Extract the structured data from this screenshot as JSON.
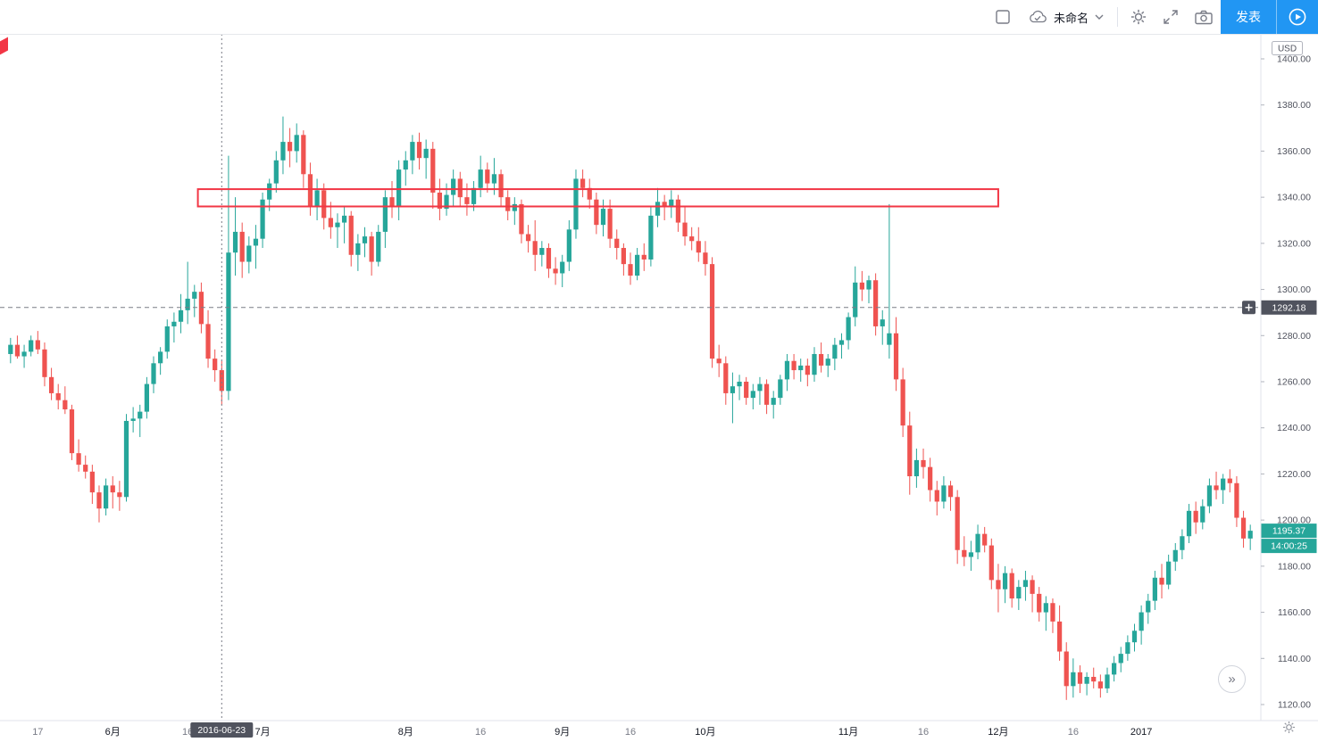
{
  "toolbar": {
    "layout_name": "未命名",
    "publish_label": "发表"
  },
  "footer": {
    "more_label": "»"
  },
  "chart_data": {
    "type": "candlestick",
    "currency": "USD",
    "grid": false,
    "title": "",
    "y_ticks": [
      1400,
      1380,
      1360,
      1340,
      1320,
      1300,
      1280,
      1260,
      1240,
      1220,
      1200,
      1180,
      1160,
      1140,
      1120
    ],
    "x_labels": [
      {
        "text": "17",
        "index": 4,
        "major": false
      },
      {
        "text": "6月",
        "index": 15,
        "major": true
      },
      {
        "text": "16",
        "index": 26,
        "major": false
      },
      {
        "text": "7月",
        "index": 37,
        "major": true
      },
      {
        "text": "8月",
        "index": 58,
        "major": true
      },
      {
        "text": "16",
        "index": 69,
        "major": false
      },
      {
        "text": "9月",
        "index": 81,
        "major": true
      },
      {
        "text": "16",
        "index": 91,
        "major": false
      },
      {
        "text": "10月",
        "index": 102,
        "major": true
      },
      {
        "text": "11月",
        "index": 123,
        "major": true
      },
      {
        "text": "16",
        "index": 134,
        "major": false
      },
      {
        "text": "12月",
        "index": 145,
        "major": true
      },
      {
        "text": "16",
        "index": 156,
        "major": false
      },
      {
        "text": "2017",
        "index": 166,
        "major": true
      }
    ],
    "colors": {
      "up": "#26a69a",
      "down": "#ef5350",
      "crosshair": "#787b86",
      "badge_dark": "#50535e",
      "accent_blue": "#2196f3",
      "drawing_red": "#f23645"
    },
    "candles_ohlc": [
      [
        1272,
        1279,
        1268,
        1276
      ],
      [
        1276,
        1280,
        1270,
        1271
      ],
      [
        1271,
        1276,
        1266,
        1273
      ],
      [
        1273,
        1280,
        1271,
        1278
      ],
      [
        1278,
        1282,
        1272,
        1274
      ],
      [
        1274,
        1277,
        1258,
        1262
      ],
      [
        1262,
        1266,
        1252,
        1255
      ],
      [
        1255,
        1259,
        1248,
        1252
      ],
      [
        1252,
        1258,
        1246,
        1248
      ],
      [
        1248,
        1250,
        1226,
        1229
      ],
      [
        1229,
        1235,
        1221,
        1224
      ],
      [
        1224,
        1228,
        1218,
        1221
      ],
      [
        1221,
        1224,
        1207,
        1212
      ],
      [
        1212,
        1215,
        1199,
        1205
      ],
      [
        1205,
        1218,
        1202,
        1215
      ],
      [
        1215,
        1219,
        1205,
        1212
      ],
      [
        1212,
        1217,
        1204,
        1210
      ],
      [
        1210,
        1246,
        1208,
        1243
      ],
      [
        1243,
        1249,
        1238,
        1244
      ],
      [
        1244,
        1250,
        1236,
        1247
      ],
      [
        1247,
        1262,
        1244,
        1259
      ],
      [
        1259,
        1271,
        1255,
        1268
      ],
      [
        1268,
        1275,
        1263,
        1273
      ],
      [
        1273,
        1287,
        1270,
        1284
      ],
      [
        1284,
        1290,
        1277,
        1286
      ],
      [
        1286,
        1298,
        1281,
        1291
      ],
      [
        1291,
        1312,
        1285,
        1296
      ],
      [
        1296,
        1302,
        1288,
        1299
      ],
      [
        1299,
        1303,
        1281,
        1285
      ],
      [
        1285,
        1291,
        1266,
        1270
      ],
      [
        1270,
        1274,
        1260,
        1265
      ],
      [
        1265,
        1269,
        1250,
        1256
      ],
      [
        1256,
        1358,
        1252,
        1316
      ],
      [
        1316,
        1340,
        1306,
        1325
      ],
      [
        1325,
        1329,
        1305,
        1312
      ],
      [
        1312,
        1323,
        1307,
        1319
      ],
      [
        1319,
        1328,
        1309,
        1322
      ],
      [
        1322,
        1342,
        1318,
        1339
      ],
      [
        1339,
        1348,
        1334,
        1346
      ],
      [
        1346,
        1360,
        1342,
        1356
      ],
      [
        1356,
        1375,
        1350,
        1364
      ],
      [
        1364,
        1370,
        1353,
        1360
      ],
      [
        1360,
        1372,
        1355,
        1367
      ],
      [
        1367,
        1369,
        1344,
        1350
      ],
      [
        1350,
        1355,
        1332,
        1336
      ],
      [
        1336,
        1348,
        1330,
        1343
      ],
      [
        1343,
        1346,
        1326,
        1331
      ],
      [
        1331,
        1338,
        1322,
        1327
      ],
      [
        1327,
        1333,
        1318,
        1329
      ],
      [
        1329,
        1336,
        1320,
        1332
      ],
      [
        1332,
        1334,
        1310,
        1315
      ],
      [
        1315,
        1324,
        1308,
        1320
      ],
      [
        1320,
        1327,
        1314,
        1323
      ],
      [
        1323,
        1325,
        1306,
        1312
      ],
      [
        1312,
        1328,
        1310,
        1325
      ],
      [
        1325,
        1343,
        1318,
        1340
      ],
      [
        1340,
        1347,
        1331,
        1336
      ],
      [
        1336,
        1356,
        1330,
        1352
      ],
      [
        1352,
        1360,
        1345,
        1356
      ],
      [
        1356,
        1367,
        1350,
        1364
      ],
      [
        1364,
        1368,
        1352,
        1357
      ],
      [
        1357,
        1365,
        1348,
        1361
      ],
      [
        1361,
        1364,
        1335,
        1342
      ],
      [
        1342,
        1348,
        1330,
        1335
      ],
      [
        1335,
        1346,
        1332,
        1341
      ],
      [
        1341,
        1352,
        1336,
        1348
      ],
      [
        1348,
        1351,
        1336,
        1340
      ],
      [
        1340,
        1346,
        1332,
        1337
      ],
      [
        1337,
        1347,
        1334,
        1344
      ],
      [
        1344,
        1358,
        1340,
        1352
      ],
      [
        1352,
        1355,
        1342,
        1346
      ],
      [
        1346,
        1357,
        1341,
        1350
      ],
      [
        1350,
        1352,
        1336,
        1340
      ],
      [
        1340,
        1343,
        1330,
        1334
      ],
      [
        1334,
        1340,
        1328,
        1337
      ],
      [
        1337,
        1339,
        1320,
        1324
      ],
      [
        1324,
        1328,
        1316,
        1321
      ],
      [
        1321,
        1330,
        1308,
        1315
      ],
      [
        1315,
        1321,
        1310,
        1318
      ],
      [
        1318,
        1320,
        1305,
        1309
      ],
      [
        1309,
        1314,
        1302,
        1307
      ],
      [
        1307,
        1315,
        1301,
        1312
      ],
      [
        1312,
        1330,
        1308,
        1326
      ],
      [
        1326,
        1352,
        1322,
        1348
      ],
      [
        1348,
        1352,
        1340,
        1344
      ],
      [
        1344,
        1348,
        1335,
        1339
      ],
      [
        1339,
        1342,
        1324,
        1328
      ],
      [
        1328,
        1339,
        1323,
        1335
      ],
      [
        1335,
        1339,
        1318,
        1322
      ],
      [
        1322,
        1326,
        1313,
        1318
      ],
      [
        1318,
        1320,
        1306,
        1311
      ],
      [
        1311,
        1316,
        1302,
        1306
      ],
      [
        1306,
        1318,
        1304,
        1315
      ],
      [
        1315,
        1320,
        1308,
        1313
      ],
      [
        1313,
        1336,
        1310,
        1332
      ],
      [
        1332,
        1344,
        1327,
        1338
      ],
      [
        1338,
        1341,
        1330,
        1336
      ],
      [
        1336,
        1343,
        1331,
        1339
      ],
      [
        1339,
        1341,
        1325,
        1329
      ],
      [
        1329,
        1336,
        1319,
        1323
      ],
      [
        1323,
        1327,
        1317,
        1321
      ],
      [
        1321,
        1327,
        1312,
        1316
      ],
      [
        1316,
        1321,
        1306,
        1311
      ],
      [
        1311,
        1314,
        1266,
        1270
      ],
      [
        1270,
        1276,
        1262,
        1268
      ],
      [
        1268,
        1271,
        1250,
        1255
      ],
      [
        1255,
        1264,
        1242,
        1258
      ],
      [
        1258,
        1263,
        1252,
        1260
      ],
      [
        1260,
        1262,
        1250,
        1253
      ],
      [
        1253,
        1259,
        1248,
        1256
      ],
      [
        1256,
        1262,
        1250,
        1259
      ],
      [
        1259,
        1261,
        1246,
        1250
      ],
      [
        1250,
        1256,
        1244,
        1253
      ],
      [
        1253,
        1263,
        1250,
        1261
      ],
      [
        1261,
        1272,
        1256,
        1269
      ],
      [
        1269,
        1272,
        1261,
        1265
      ],
      [
        1265,
        1270,
        1260,
        1267
      ],
      [
        1267,
        1270,
        1258,
        1263
      ],
      [
        1263,
        1275,
        1260,
        1272
      ],
      [
        1272,
        1277,
        1264,
        1267
      ],
      [
        1267,
        1272,
        1262,
        1270
      ],
      [
        1270,
        1279,
        1265,
        1276
      ],
      [
        1276,
        1281,
        1270,
        1278
      ],
      [
        1278,
        1290,
        1274,
        1288
      ],
      [
        1288,
        1310,
        1284,
        1303
      ],
      [
        1303,
        1308,
        1295,
        1300
      ],
      [
        1300,
        1306,
        1294,
        1304
      ],
      [
        1304,
        1307,
        1280,
        1284
      ],
      [
        1284,
        1291,
        1276,
        1287
      ],
      [
        1276,
        1337,
        1270,
        1281
      ],
      [
        1281,
        1288,
        1256,
        1261
      ],
      [
        1261,
        1266,
        1236,
        1241
      ],
      [
        1241,
        1247,
        1211,
        1219
      ],
      [
        1219,
        1231,
        1214,
        1226
      ],
      [
        1226,
        1231,
        1218,
        1223
      ],
      [
        1223,
        1227,
        1208,
        1213
      ],
      [
        1213,
        1217,
        1202,
        1208
      ],
      [
        1208,
        1219,
        1205,
        1215
      ],
      [
        1215,
        1217,
        1204,
        1210
      ],
      [
        1210,
        1213,
        1181,
        1187
      ],
      [
        1187,
        1193,
        1180,
        1184
      ],
      [
        1184,
        1191,
        1178,
        1186
      ],
      [
        1186,
        1198,
        1183,
        1194
      ],
      [
        1194,
        1197,
        1186,
        1189
      ],
      [
        1189,
        1192,
        1170,
        1174
      ],
      [
        1174,
        1181,
        1160,
        1170
      ],
      [
        1170,
        1180,
        1164,
        1177
      ],
      [
        1177,
        1179,
        1162,
        1166
      ],
      [
        1166,
        1174,
        1161,
        1171
      ],
      [
        1171,
        1178,
        1165,
        1174
      ],
      [
        1174,
        1176,
        1160,
        1168
      ],
      [
        1168,
        1171,
        1156,
        1160
      ],
      [
        1160,
        1167,
        1152,
        1164
      ],
      [
        1164,
        1166,
        1151,
        1156
      ],
      [
        1156,
        1163,
        1139,
        1143
      ],
      [
        1143,
        1147,
        1122,
        1128
      ],
      [
        1128,
        1140,
        1123,
        1134
      ],
      [
        1134,
        1137,
        1125,
        1129
      ],
      [
        1129,
        1134,
        1124,
        1132
      ],
      [
        1132,
        1136,
        1127,
        1130
      ],
      [
        1130,
        1133,
        1123,
        1127
      ],
      [
        1127,
        1136,
        1125,
        1133
      ],
      [
        1133,
        1141,
        1130,
        1138
      ],
      [
        1138,
        1145,
        1134,
        1142
      ],
      [
        1142,
        1150,
        1139,
        1147
      ],
      [
        1147,
        1155,
        1143,
        1152
      ],
      [
        1152,
        1163,
        1146,
        1160
      ],
      [
        1160,
        1168,
        1155,
        1165
      ],
      [
        1165,
        1178,
        1161,
        1175
      ],
      [
        1175,
        1181,
        1166,
        1172
      ],
      [
        1172,
        1185,
        1170,
        1182
      ],
      [
        1182,
        1190,
        1178,
        1187
      ],
      [
        1187,
        1196,
        1183,
        1193
      ],
      [
        1193,
        1207,
        1190,
        1204
      ],
      [
        1204,
        1208,
        1194,
        1199
      ],
      [
        1199,
        1209,
        1196,
        1206
      ],
      [
        1206,
        1218,
        1203,
        1215
      ],
      [
        1215,
        1221,
        1209,
        1213
      ],
      [
        1213,
        1220,
        1207,
        1218
      ],
      [
        1218,
        1222,
        1212,
        1216
      ],
      [
        1216,
        1219,
        1197,
        1201
      ],
      [
        1201,
        1204,
        1188,
        1192
      ],
      [
        1192,
        1198,
        1187,
        1195.37
      ]
    ],
    "crosshair": {
      "index": 31,
      "date_label": "2016-06-23",
      "price": 1292.18
    },
    "last_price": 1195.37,
    "countdown": "14:00:25",
    "drawings": {
      "rectangle": {
        "start_index": 28,
        "end_index": 145.5,
        "price_top": 1343.5,
        "price_bottom": 1336,
        "color": "#f23645"
      }
    }
  }
}
